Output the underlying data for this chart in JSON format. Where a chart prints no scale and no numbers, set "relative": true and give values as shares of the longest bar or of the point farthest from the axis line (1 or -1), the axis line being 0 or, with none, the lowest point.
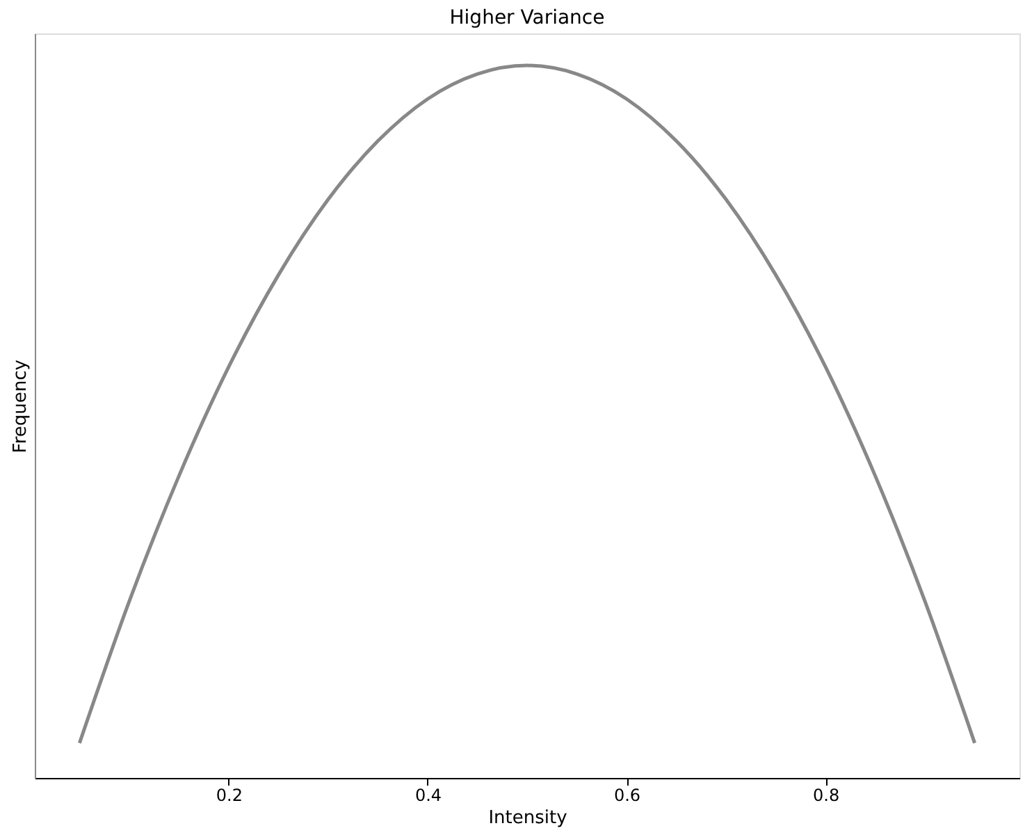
{
  "chart_data": {
    "type": "line",
    "title": "Higher Variance",
    "xlabel": "Intensity",
    "ylabel": "Frequency",
    "relative": true,
    "grid": false,
    "tick_labels": "x",
    "line_style": "solid",
    "marker": "none",
    "xlim": [
      0.005,
      0.995
    ],
    "xticks": [
      0.2,
      0.4,
      0.6,
      0.8
    ],
    "x": [
      0.05,
      0.1,
      0.15,
      0.2,
      0.25,
      0.3,
      0.35,
      0.4,
      0.45,
      0.5,
      0.55,
      0.6,
      0.65,
      0.7,
      0.75,
      0.8,
      0.85,
      0.9,
      0.95
    ],
    "series": [
      {
        "color": "#888888",
        "values": [
          0.049,
          0.248,
          0.424,
          0.577,
          0.706,
          0.812,
          0.894,
          0.953,
          0.988,
          1.0,
          0.988,
          0.953,
          0.894,
          0.812,
          0.706,
          0.577,
          0.424,
          0.248,
          0.049
        ]
      }
    ]
  }
}
